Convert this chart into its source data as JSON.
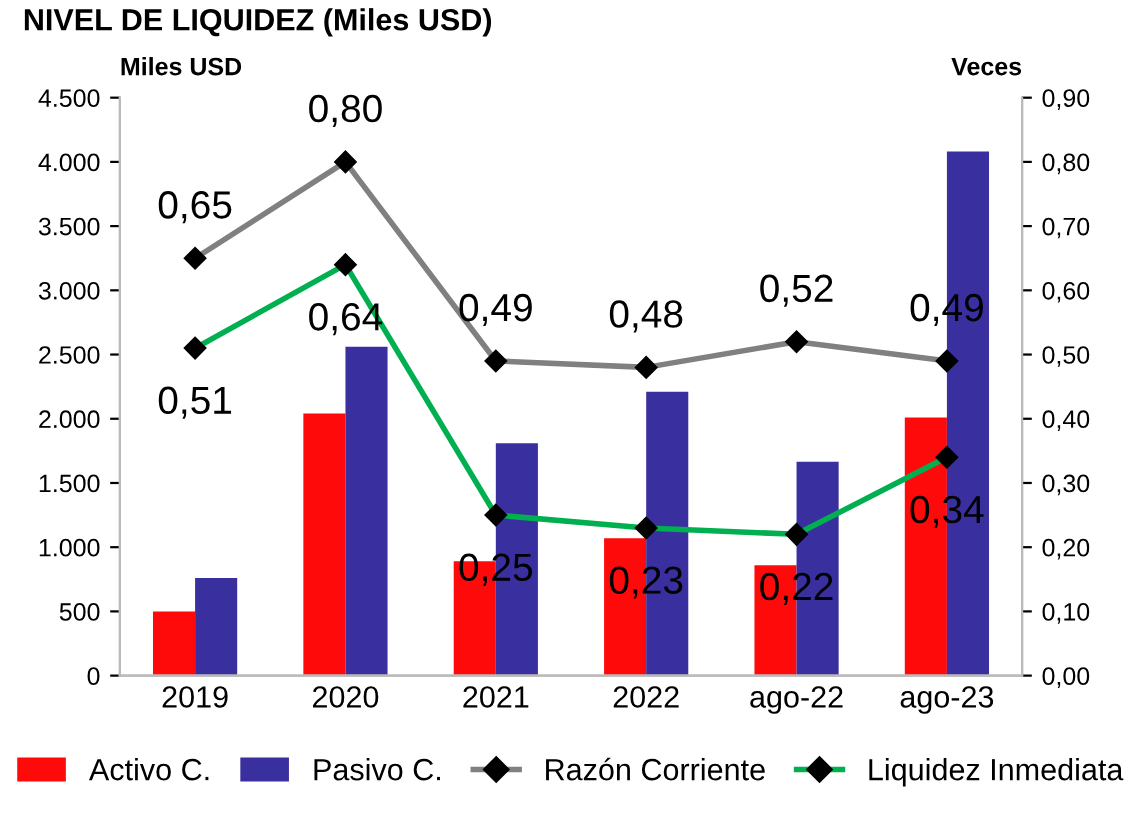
{
  "chart_data": {
    "type": "bar",
    "title": "NIVEL DE LIQUIDEZ (Miles USD)",
    "ylabel": "Miles USD",
    "y2label": "Veces",
    "categories": [
      "2019",
      "2020",
      "2021",
      "2022",
      "ago-22",
      "ago-23"
    ],
    "series": [
      {
        "name": "Activo C.",
        "color": "#ff0a0a",
        "values": [
          500,
          2040,
          890,
          1070,
          860,
          2010
        ]
      },
      {
        "name": "Pasivo C.",
        "color": "#3a2f9e",
        "values": [
          760,
          2560,
          1810,
          2210,
          1665,
          4080
        ]
      },
      {
        "name": "Razón Corriente",
        "type": "line",
        "axis": "y2",
        "color": "#808080",
        "marker": "diamond",
        "values": [
          0.65,
          0.8,
          0.49,
          0.48,
          0.52,
          0.49
        ],
        "value_labels": [
          "0,65",
          "0,80",
          "0,49",
          "0,48",
          "0,52",
          "0,49"
        ]
      },
      {
        "name": "Liquidez Inmediata",
        "type": "line",
        "axis": "y2",
        "color": "#00b050",
        "marker": "diamond",
        "values": [
          0.51,
          0.64,
          0.25,
          0.23,
          0.22,
          0.34
        ],
        "value_labels": [
          "0,51",
          "0,64",
          "0,25",
          "0,23",
          "0,22",
          "0,34"
        ]
      }
    ],
    "ylim": [
      0,
      4500
    ],
    "yticks": [
      {
        "value": 0,
        "label": "0"
      },
      {
        "value": 500,
        "label": "500"
      },
      {
        "value": 1000,
        "label": "1.000"
      },
      {
        "value": 1500,
        "label": "1.500"
      },
      {
        "value": 2000,
        "label": "2.000"
      },
      {
        "value": 2500,
        "label": "2.500"
      },
      {
        "value": 3000,
        "label": "3.000"
      },
      {
        "value": 3500,
        "label": "3.500"
      },
      {
        "value": 4000,
        "label": "4.000"
      },
      {
        "value": 4500,
        "label": "4.500"
      }
    ],
    "y2lim": [
      0,
      0.9
    ],
    "y2ticks": [
      {
        "value": 0,
        "label": "0,00"
      },
      {
        "value": 0.1,
        "label": "0,10"
      },
      {
        "value": 0.2,
        "label": "0,20"
      },
      {
        "value": 0.3,
        "label": "0,30"
      },
      {
        "value": 0.4,
        "label": "0,40"
      },
      {
        "value": 0.5,
        "label": "0,50"
      },
      {
        "value": 0.6,
        "label": "0,60"
      },
      {
        "value": 0.7,
        "label": "0,70"
      },
      {
        "value": 0.8,
        "label": "0,80"
      },
      {
        "value": 0.9,
        "label": "0,90"
      }
    ],
    "grid": false,
    "legend": "bottom"
  }
}
